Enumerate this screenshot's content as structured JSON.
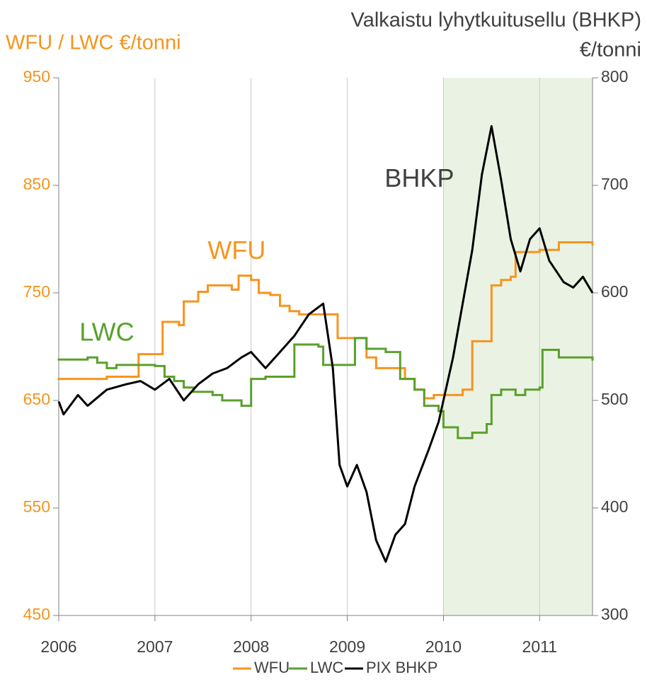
{
  "chart_data": {
    "type": "line",
    "y_label": "WFU / LWC  €/tonni",
    "y2_label": [
      "Valkaistu lyhytkuitusellu (BHKP)",
      "€/tonni"
    ],
    "xlim": [
      2006,
      2011.55
    ],
    "xticks": [
      2006,
      2007,
      2008,
      2009,
      2010,
      2011
    ],
    "ylim": [
      450,
      950
    ],
    "yticks": [
      450,
      550,
      650,
      750,
      850,
      950
    ],
    "y2lim": [
      300,
      800
    ],
    "y2ticks": [
      300,
      400,
      500,
      600,
      700,
      800
    ],
    "grid_x": true,
    "highlight_x": [
      2010,
      2011.55
    ],
    "highlight_color": "#eaf3e3",
    "legend": "bottom",
    "annotations": [
      {
        "text": "WFU",
        "x": 2007.85,
        "y": 788,
        "color": "#f7941d"
      },
      {
        "text": "LWC",
        "x": 2006.5,
        "y": 712,
        "color": "#5aa02c"
      },
      {
        "text": "BHKP",
        "x": 2009.75,
        "y": 705,
        "axis": "y2",
        "color": "#404040"
      }
    ],
    "series": [
      {
        "name": "WFU",
        "color": "#f7941d",
        "step": true,
        "x": [
          2006,
          2006.5,
          2006.83,
          2007.08,
          2007.25,
          2007.3,
          2007.45,
          2007.55,
          2007.8,
          2007.87,
          2008,
          2008.08,
          2008.2,
          2008.3,
          2008.4,
          2008.5,
          2008.9,
          2009.2,
          2009.3,
          2009.6,
          2009.7,
          2009.8,
          2009.9,
          2010.2,
          2010.3,
          2010.5,
          2010.6,
          2010.7,
          2010.75,
          2011,
          2011.2,
          2011.55
        ],
        "values": [
          670,
          672,
          693,
          723,
          720,
          742,
          751,
          757,
          753,
          766,
          762,
          750,
          748,
          738,
          733,
          730,
          708,
          690,
          680,
          670,
          660,
          652,
          655,
          660,
          705,
          757,
          762,
          765,
          788,
          790,
          797,
          795
        ]
      },
      {
        "name": "LWC",
        "color": "#5aa02c",
        "step": true,
        "x": [
          2006,
          2006.3,
          2006.4,
          2006.5,
          2006.6,
          2007,
          2007.1,
          2007.2,
          2007.3,
          2007.4,
          2007.6,
          2007.7,
          2007.9,
          2008,
          2008.15,
          2008.45,
          2008.7,
          2008.75,
          2009.08,
          2009.2,
          2009.4,
          2009.55,
          2009.7,
          2009.8,
          2009.95,
          2010,
          2010.15,
          2010.3,
          2010.45,
          2010.5,
          2010.6,
          2010.75,
          2010.85,
          2011,
          2011.03,
          2011.2,
          2011.55
        ],
        "values": [
          688,
          690,
          685,
          680,
          683,
          682,
          672,
          668,
          662,
          658,
          655,
          650,
          645,
          670,
          672,
          702,
          700,
          683,
          708,
          698,
          695,
          670,
          660,
          645,
          640,
          625,
          615,
          620,
          628,
          655,
          660,
          655,
          660,
          662,
          697,
          690,
          688
        ]
      },
      {
        "name": "PIX BHKP",
        "color": "#000000",
        "axis": "y2",
        "x": [
          2006,
          2006.05,
          2006.2,
          2006.3,
          2006.5,
          2006.7,
          2006.85,
          2007,
          2007.15,
          2007.3,
          2007.45,
          2007.6,
          2007.75,
          2007.9,
          2008,
          2008.15,
          2008.3,
          2008.45,
          2008.6,
          2008.75,
          2008.85,
          2008.92,
          2009,
          2009.1,
          2009.2,
          2009.3,
          2009.4,
          2009.5,
          2009.6,
          2009.7,
          2009.85,
          2009.95,
          2010.1,
          2010.2,
          2010.3,
          2010.4,
          2010.5,
          2010.6,
          2010.7,
          2010.8,
          2010.9,
          2011,
          2011.1,
          2011.25,
          2011.35,
          2011.45,
          2011.55
        ],
        "values": [
          499,
          487,
          505,
          495,
          510,
          515,
          518,
          510,
          520,
          500,
          515,
          525,
          530,
          540,
          545,
          530,
          545,
          560,
          580,
          590,
          530,
          440,
          420,
          440,
          415,
          370,
          350,
          375,
          385,
          420,
          455,
          480,
          540,
          590,
          640,
          710,
          755,
          705,
          650,
          620,
          650,
          660,
          630,
          610,
          605,
          615,
          600
        ]
      }
    ]
  }
}
